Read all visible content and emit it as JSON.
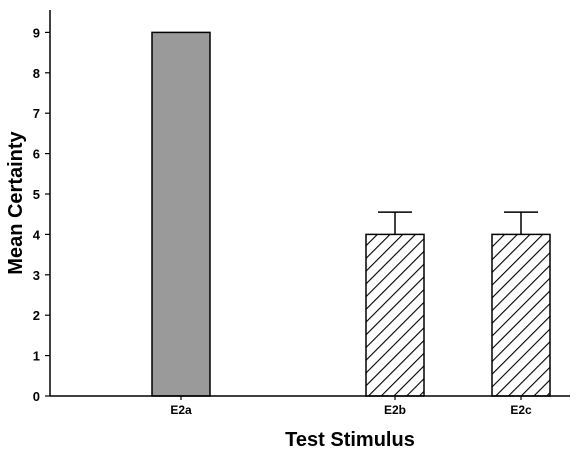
{
  "chart_data": {
    "type": "bar",
    "xlabel": "Test Stimulus",
    "ylabel": "Mean Certainty",
    "ylim": [
      0,
      9.5
    ],
    "yticks": [
      0,
      1,
      2,
      3,
      4,
      5,
      6,
      7,
      8,
      9
    ],
    "categories": [
      "E2a",
      "E2b",
      "E2c"
    ],
    "values": [
      9,
      4,
      4
    ],
    "error_upper": [
      null,
      0.55,
      0.55
    ],
    "fill_styles": [
      "solid-gray",
      "diagonal-hatch",
      "diagonal-hatch"
    ],
    "colors": {
      "solid": "#9a9a9a",
      "hatch": "#000000",
      "outline": "#000000"
    },
    "grid": false,
    "legend": "none"
  }
}
